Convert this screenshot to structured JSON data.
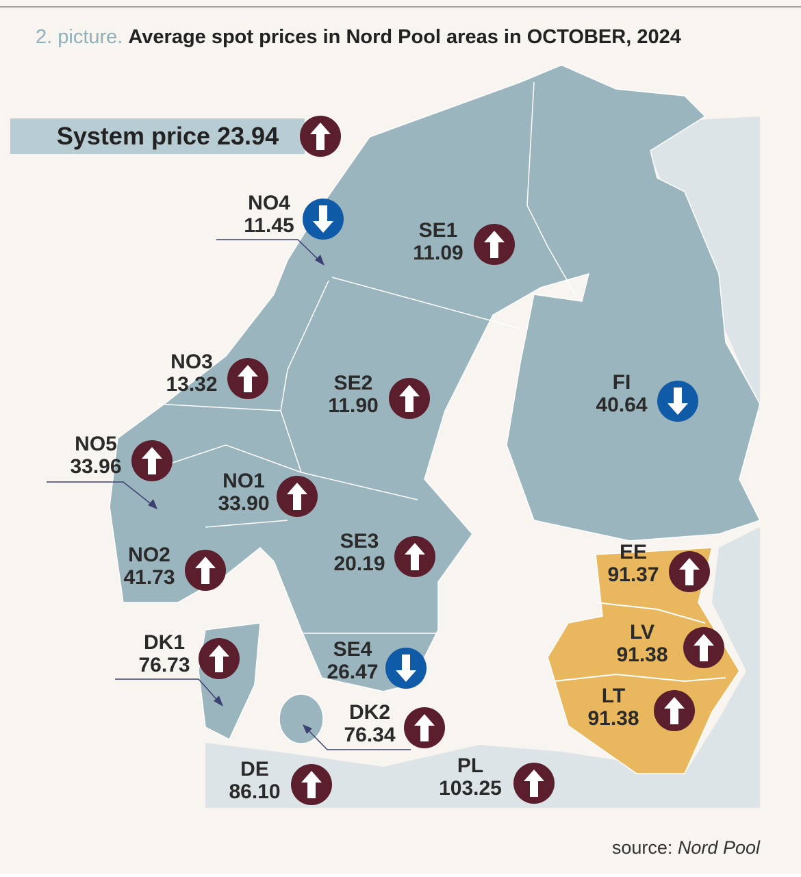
{
  "header": {
    "prefix": "2. picture.",
    "title": "Average spot prices in Nord Pool areas in OCTOBER, 2024"
  },
  "system_price": {
    "label": "System price",
    "price": "23.94",
    "direction": "up"
  },
  "areas": [
    {
      "name": "NO4",
      "price": "11.45",
      "direction": "down"
    },
    {
      "name": "SE1",
      "price": "11.09",
      "direction": "up"
    },
    {
      "name": "NO3",
      "price": "13.32",
      "direction": "up"
    },
    {
      "name": "SE2",
      "price": "11.90",
      "direction": "up"
    },
    {
      "name": "FI",
      "price": "40.64",
      "direction": "down"
    },
    {
      "name": "NO5",
      "price": "33.96",
      "direction": "up"
    },
    {
      "name": "NO1",
      "price": "33.90",
      "direction": "up"
    },
    {
      "name": "SE3",
      "price": "20.19",
      "direction": "up"
    },
    {
      "name": "NO2",
      "price": "41.73",
      "direction": "up"
    },
    {
      "name": "EE",
      "price": "91.37",
      "direction": "up"
    },
    {
      "name": "LV",
      "price": "91.38",
      "direction": "up"
    },
    {
      "name": "DK1",
      "price": "76.73",
      "direction": "up"
    },
    {
      "name": "SE4",
      "price": "26.47",
      "direction": "down"
    },
    {
      "name": "LT",
      "price": "91.38",
      "direction": "up"
    },
    {
      "name": "DK2",
      "price": "76.34",
      "direction": "up"
    },
    {
      "name": "DE",
      "price": "86.10",
      "direction": "up"
    },
    {
      "name": "PL",
      "price": "103.25",
      "direction": "up"
    }
  ],
  "source": {
    "label": "source:",
    "name": "Nord Pool"
  }
}
